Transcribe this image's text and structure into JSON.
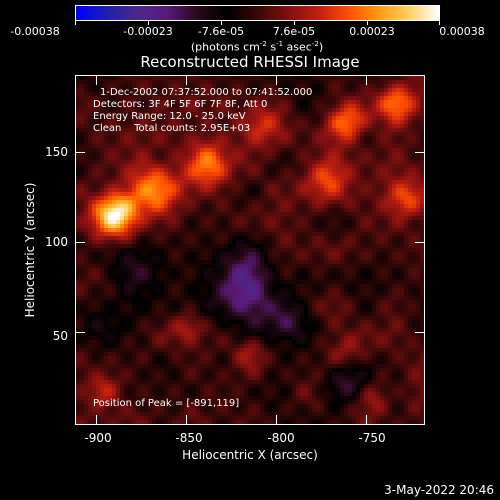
{
  "colorbar": {
    "labels": [
      "-0.00038",
      "-0.00023",
      "-7.6e-05",
      "7.6e-05",
      "0.00023",
      "0.00038"
    ],
    "units": {
      "prefix": "(photons cm",
      "sup1": "-2",
      "mid1": " s",
      "sup2": "-1",
      "mid2": " asec",
      "sup3": "-2",
      "suffix": ")"
    },
    "colormap": [
      "#0000ff",
      "#2020b0",
      "#4a2a8a",
      "#5a1a7a",
      "#2a0a1a",
      "#000000",
      "#3a0808",
      "#801010",
      "#c02010",
      "#ff5000",
      "#ff9a10",
      "#ffd060",
      "#ffffff"
    ]
  },
  "title": "Reconstructed RHESSI Image",
  "info": {
    "line1": "1-Dec-2002 07:37:52.000 to 07:41:52.000",
    "line2": "Detectors: 3F 4F 5F 6F 7F 8F, Att 0",
    "line3": "Energy Range: 12.0 - 25.0 keV",
    "line4": "Clean    Total counts: 2.95E+03",
    "peak": "Position of Peak = [-891,119]"
  },
  "axes": {
    "xlabel": "Heliocentric X (arcsec)",
    "ylabel": "Heliocentric Y (arcsec)",
    "xticks": [
      "-900",
      "-850",
      "-800",
      "-750"
    ],
    "yticks": [
      "150",
      "100",
      "50"
    ],
    "xrange": [
      -912,
      -718
    ],
    "yrange": [
      2,
      196
    ]
  },
  "timestamp": "3-May-2022 20:46",
  "chart_data": {
    "type": "heatmap",
    "title": "Reconstructed RHESSI Image",
    "xlabel": "Heliocentric X (arcsec)",
    "ylabel": "Heliocentric Y (arcsec)",
    "xlim": [
      -912,
      -718
    ],
    "ylim": [
      2,
      196
    ],
    "zlim": [
      -0.00038,
      0.00038
    ],
    "peak": [
      -891,
      119
    ],
    "sources": [
      {
        "x": -891,
        "y": 119,
        "amp": 0.00038,
        "w": 9
      },
      {
        "x": -868,
        "y": 133,
        "amp": 0.00026,
        "w": 10
      },
      {
        "x": -840,
        "y": 147,
        "amp": 0.00024,
        "w": 9
      },
      {
        "x": -760,
        "y": 172,
        "amp": 0.00022,
        "w": 8
      },
      {
        "x": -732,
        "y": 182,
        "amp": 0.0002,
        "w": 8
      },
      {
        "x": -772,
        "y": 140,
        "amp": 0.00016,
        "w": 9
      },
      {
        "x": -726,
        "y": 128,
        "amp": 0.00015,
        "w": 8
      },
      {
        "x": -807,
        "y": 170,
        "amp": 0.00013,
        "w": 9
      },
      {
        "x": -850,
        "y": 55,
        "amp": 0.0001,
        "w": 6
      },
      {
        "x": -815,
        "y": 42,
        "amp": 9e-05,
        "w": 6
      },
      {
        "x": -760,
        "y": 40,
        "amp": 8e-05,
        "w": 7
      },
      {
        "x": -898,
        "y": 20,
        "amp": 9e-05,
        "w": 6
      },
      {
        "x": -745,
        "y": 15,
        "amp": 8e-05,
        "w": 6
      },
      {
        "x": -820,
        "y": 80,
        "amp": -0.00022,
        "w": 14
      },
      {
        "x": -795,
        "y": 60,
        "amp": -0.00016,
        "w": 10
      },
      {
        "x": -880,
        "y": 90,
        "amp": -0.00012,
        "w": 12
      },
      {
        "x": -760,
        "y": 25,
        "amp": -0.00014,
        "w": 8
      },
      {
        "x": -900,
        "y": 60,
        "amp": -8e-05,
        "w": 10
      }
    ]
  }
}
